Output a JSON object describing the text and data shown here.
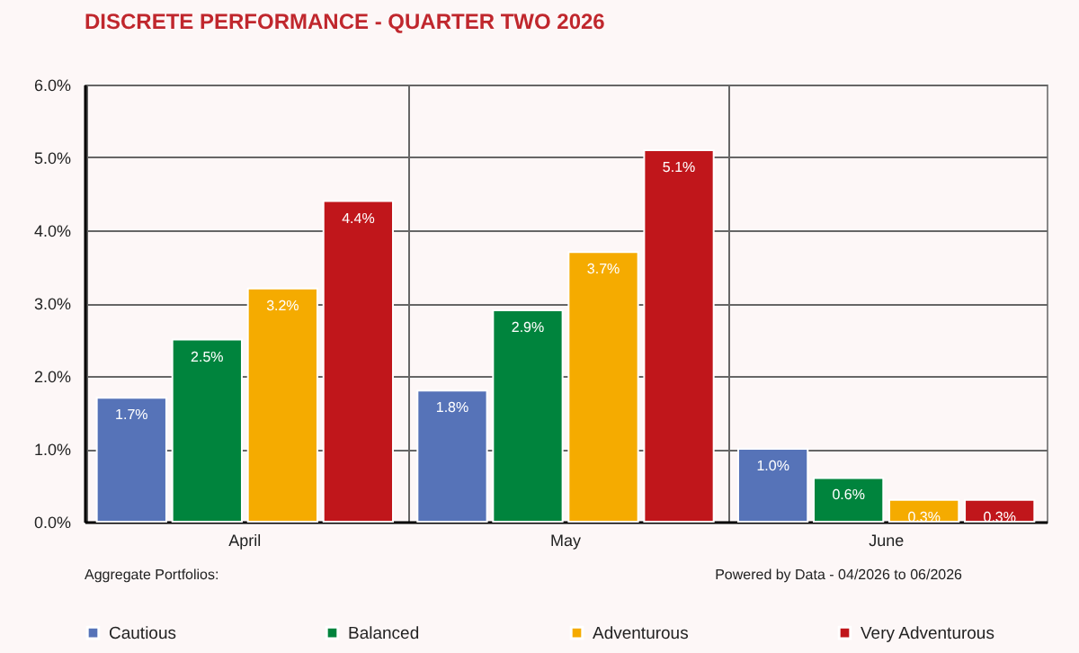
{
  "chart_data": {
    "type": "bar",
    "title": "DISCRETE PERFORMANCE - QUARTER TWO 2026",
    "categories": [
      "April",
      "May",
      "June"
    ],
    "series": [
      {
        "name": "Cautious",
        "color": "#5673b8",
        "values": [
          1.7,
          1.8,
          1.0
        ]
      },
      {
        "name": "Balanced",
        "color": "#00843d",
        "values": [
          2.5,
          2.9,
          0.6
        ]
      },
      {
        "name": "Adventurous",
        "color": "#f5ab00",
        "values": [
          3.2,
          3.7,
          0.3
        ]
      },
      {
        "name": "Very Adventurous",
        "color": "#c0161b",
        "values": [
          4.4,
          5.1,
          0.3
        ]
      }
    ],
    "ylim": [
      0,
      6
    ],
    "yticks": [
      {
        "value": 0,
        "label": "0.0%"
      },
      {
        "value": 1,
        "label": "1.0%"
      },
      {
        "value": 2,
        "label": "2.0%"
      },
      {
        "value": 3,
        "label": "3.0%"
      },
      {
        "value": 4,
        "label": "4.0%"
      },
      {
        "value": 5,
        "label": "5.0%"
      },
      {
        "value": 6,
        "label": "6.0%"
      }
    ],
    "value_labels": [
      [
        "1.7%",
        "1.8%",
        "1.0%"
      ],
      [
        "2.5%",
        "2.9%",
        "0.6%"
      ],
      [
        "3.2%",
        "3.7%",
        "0.3%"
      ],
      [
        "4.4%",
        "5.1%",
        "0.3%"
      ]
    ],
    "annotations": [
      "Aggregate Portfolios:",
      "Powered by Data - 04/2026 to 06/2026"
    ],
    "grid": true,
    "legend": "bottom"
  }
}
